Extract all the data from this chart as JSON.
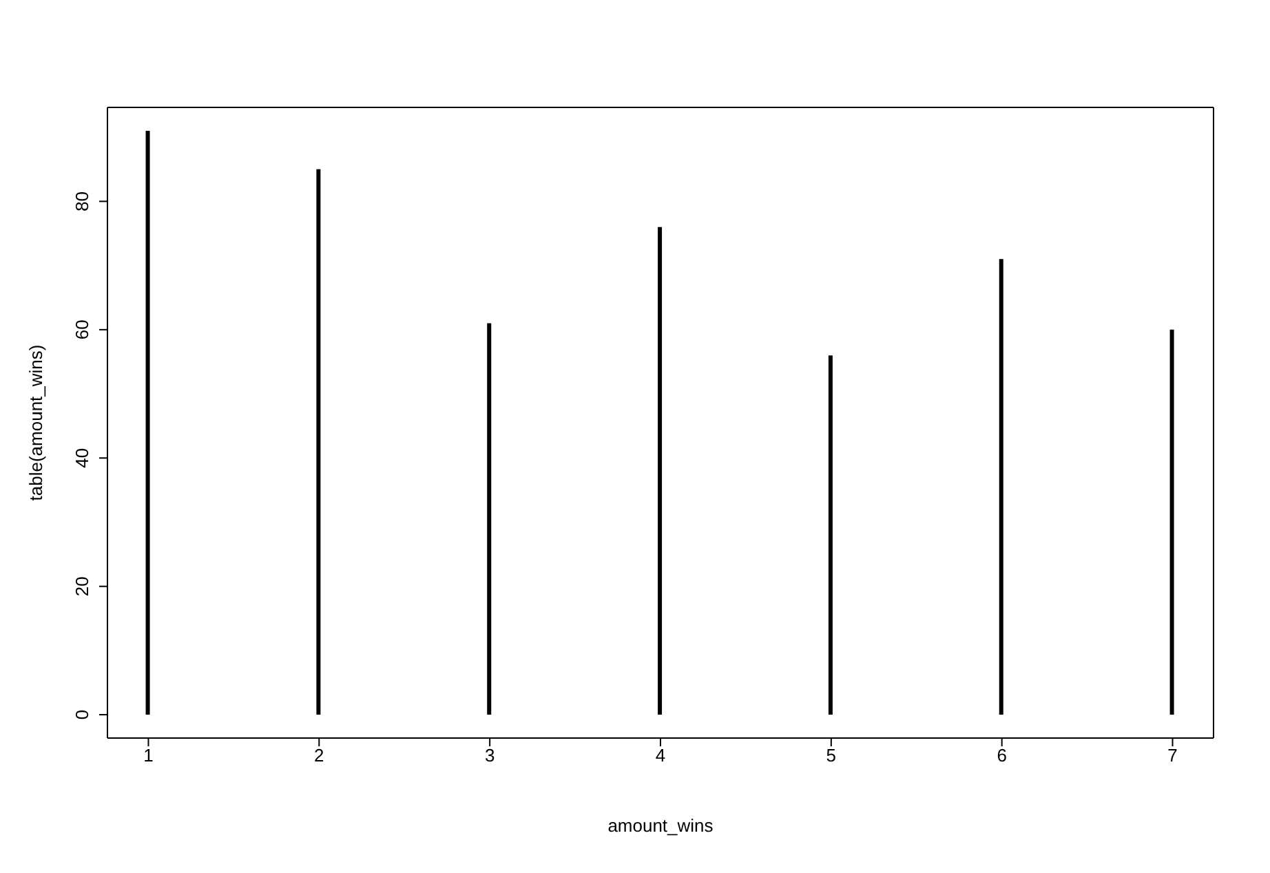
{
  "chart_data": {
    "type": "bar",
    "xlabel": "amount_wins",
    "ylabel": "table(amount_wins)",
    "x": [
      1,
      2,
      3,
      4,
      5,
      6,
      7
    ],
    "values": [
      91,
      85,
      61,
      76,
      56,
      71,
      60
    ],
    "color": "#000000",
    "xlim": [
      0.76,
      7.24
    ],
    "xticks": [
      1,
      2,
      3,
      4,
      5,
      6,
      7
    ],
    "ylim": [
      -3.64,
      94.64
    ],
    "yticks": [
      0,
      20,
      40,
      60,
      80
    ]
  }
}
